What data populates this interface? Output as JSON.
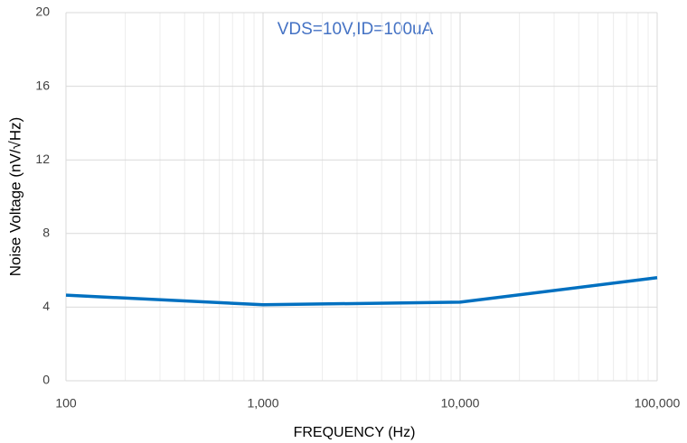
{
  "chart_data": {
    "type": "line",
    "annotation": "VDS=10V,ID=100uA",
    "x_label": "FREQUENCY (Hz)",
    "y_label": "Noise Voltage (nV/√Hz)",
    "x": [
      100,
      1000,
      10000,
      100000
    ],
    "series": [
      {
        "name": "Noise Voltage",
        "color": "#0070c0",
        "values": [
          4.65,
          4.13,
          4.27,
          5.6
        ]
      }
    ],
    "xscale": "log",
    "xlim": [
      100,
      100000
    ],
    "xticks": [
      100,
      {
        "value": 1000,
        "label": "1,000"
      },
      {
        "value": 10000,
        "label": "10,000"
      },
      {
        "value": 100000,
        "label": "100,000"
      }
    ],
    "ylim": [
      0,
      20
    ],
    "yticks": [
      0,
      4,
      8,
      12,
      16,
      20
    ],
    "grid": true,
    "minor_grid": true
  }
}
